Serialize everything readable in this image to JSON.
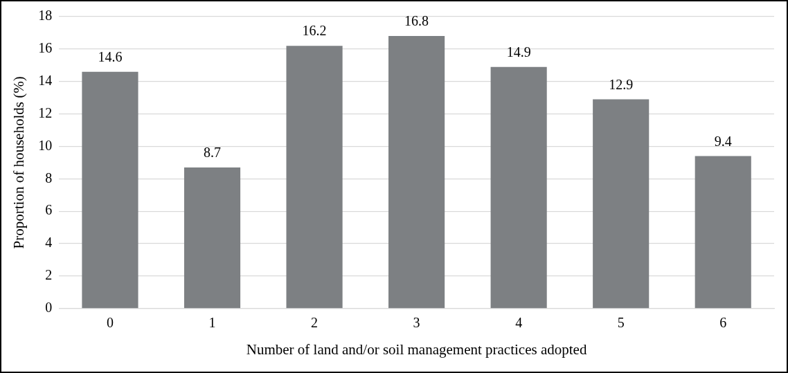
{
  "chart_data": {
    "type": "bar",
    "xlabel": "Number of land and/or soil management practices adopted",
    "ylabel": "Proportion of households (%)",
    "categories": [
      "0",
      "1",
      "2",
      "3",
      "4",
      "5",
      "6"
    ],
    "values": [
      14.6,
      8.7,
      16.2,
      16.8,
      14.9,
      12.9,
      9.4
    ],
    "color": "#7d8083",
    "ylim": [
      0,
      18
    ],
    "yticks": [
      0,
      2,
      4,
      6,
      8,
      10,
      12,
      14,
      16,
      18
    ],
    "grid": "y",
    "data_labels": true,
    "legend": false
  }
}
